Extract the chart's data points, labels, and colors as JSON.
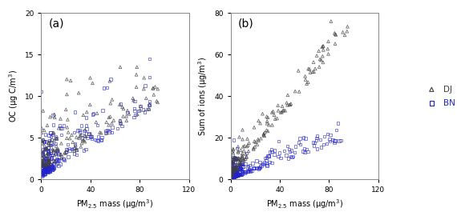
{
  "panel_a_label": "(a)",
  "panel_b_label": "(b)",
  "xlabel": "PM$_{2.5}$ mass (μg/m$^3$)",
  "ylabel_a": "OC (μg C/m$^3$)",
  "ylabel_b": "Sum of ions (μg/m$^3$)",
  "xlim": [
    0,
    120
  ],
  "ylim_a": [
    0,
    20
  ],
  "ylim_b": [
    0,
    80
  ],
  "xticks": [
    0,
    40,
    80,
    120
  ],
  "yticks_a": [
    0,
    5,
    10,
    15,
    20
  ],
  "yticks_b": [
    0,
    20,
    40,
    60,
    80
  ],
  "dj_color": "#404040",
  "bn_color": "#2222cc",
  "legend_dj": "DJ",
  "legend_bn": "BN",
  "marker_dj": "^",
  "marker_bn": "s",
  "marker_size_dj": 7,
  "marker_size_bn": 6,
  "alpha_dj": 0.75,
  "alpha_bn": 0.65,
  "seed": 123
}
